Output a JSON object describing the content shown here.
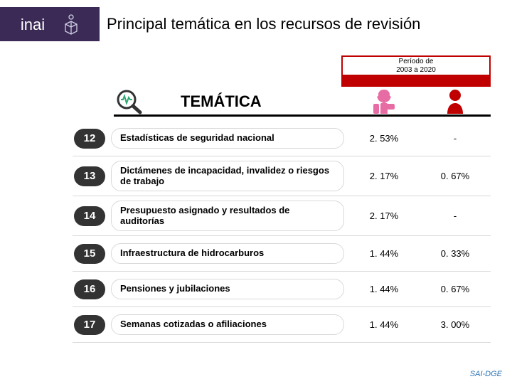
{
  "colors": {
    "headerPurple": "#3b2a55",
    "accentGreen": "#2da86f",
    "pillBg": "#333333",
    "periodBorder": "#c00000",
    "rowDivider": "#d9d9d9",
    "iconFemale": "#e86ca4",
    "iconMale": "#c00000",
    "footerBlue": "#2e75b6"
  },
  "header": {
    "logoText": "inai",
    "title": "Principal temática en los recursos de revisión",
    "title_fontsize": 22
  },
  "period": {
    "line1": "Período de",
    "line2": "2003 a 2020"
  },
  "tematica": {
    "label": "TEMÁTICA",
    "label_fontsize": 22
  },
  "table": {
    "topic_fontsize": 13,
    "value_fontsize": 13,
    "row_height_single": 50,
    "row_height_double": 56,
    "rows": [
      {
        "num": "12",
        "topic": "Estadísticas de seguridad nacional",
        "v1": "2. 53%",
        "v2": "-",
        "lines": 1
      },
      {
        "num": "13",
        "topic": "Dictámenes de incapacidad, invalidez o riesgos de trabajo",
        "v1": "2. 17%",
        "v2": "0. 67%",
        "lines": 2
      },
      {
        "num": "14",
        "topic": "Presupuesto asignado y resultados de auditorías",
        "v1": "2. 17%",
        "v2": "-",
        "lines": 2
      },
      {
        "num": "15",
        "topic": "Infraestructura de hidrocarburos",
        "v1": "1. 44%",
        "v2": "0. 33%",
        "lines": 1
      },
      {
        "num": "16",
        "topic": "Pensiones y jubilaciones",
        "v1": "1. 44%",
        "v2": "0. 67%",
        "lines": 1
      },
      {
        "num": "17",
        "topic": "Semanas cotizadas o afiliaciones",
        "v1": "1. 44%",
        "v2": "3. 00%",
        "lines": 1
      }
    ]
  },
  "footer": {
    "text": "SAI-DGE"
  }
}
